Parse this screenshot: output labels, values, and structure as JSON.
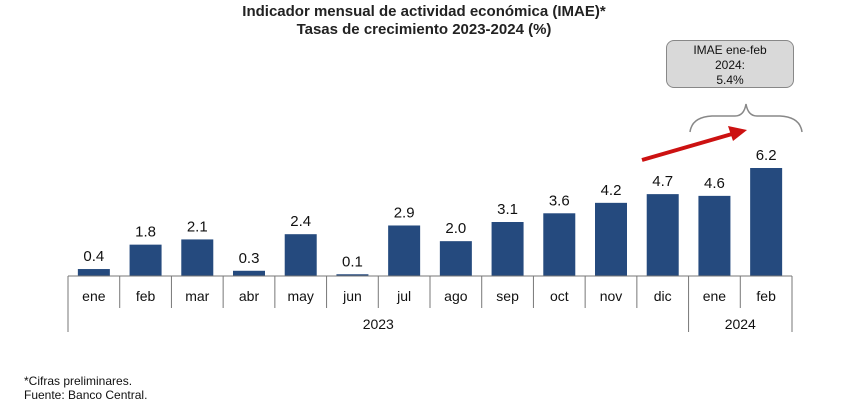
{
  "chart_data": {
    "type": "bar",
    "title": "Indicador mensual de actividad económica (IMAE)*",
    "subtitle": "Tasas de crecimiento 2023-2024 (%)",
    "categories": [
      "ene",
      "feb",
      "mar",
      "abr",
      "may",
      "jun",
      "jul",
      "ago",
      "sep",
      "oct",
      "nov",
      "dic",
      "ene",
      "feb"
    ],
    "values": [
      0.4,
      1.8,
      2.1,
      0.3,
      2.4,
      0.1,
      2.9,
      2.0,
      3.1,
      3.6,
      4.2,
      4.7,
      4.6,
      6.2
    ],
    "value_labels": [
      "0.4",
      "1.8",
      "2.1",
      "0.3",
      "2.4",
      "0.1",
      "2.9",
      "2.0",
      "3.1",
      "3.6",
      "4.2",
      "4.7",
      "4.6",
      "6.2"
    ],
    "year_groups": [
      {
        "label": "2023",
        "count": 12
      },
      {
        "label": "2024",
        "count": 2
      }
    ],
    "bar_color": "#254a7e",
    "arrow_color": "#cc1111",
    "ylim": [
      0,
      7
    ],
    "grid": false,
    "callout": {
      "line1": "IMAE ene-feb",
      "line2": "2024:",
      "line3": "5.4%"
    }
  },
  "footnotes": {
    "note": "*Cifras preliminares.",
    "source": "Fuente: Banco Central."
  }
}
